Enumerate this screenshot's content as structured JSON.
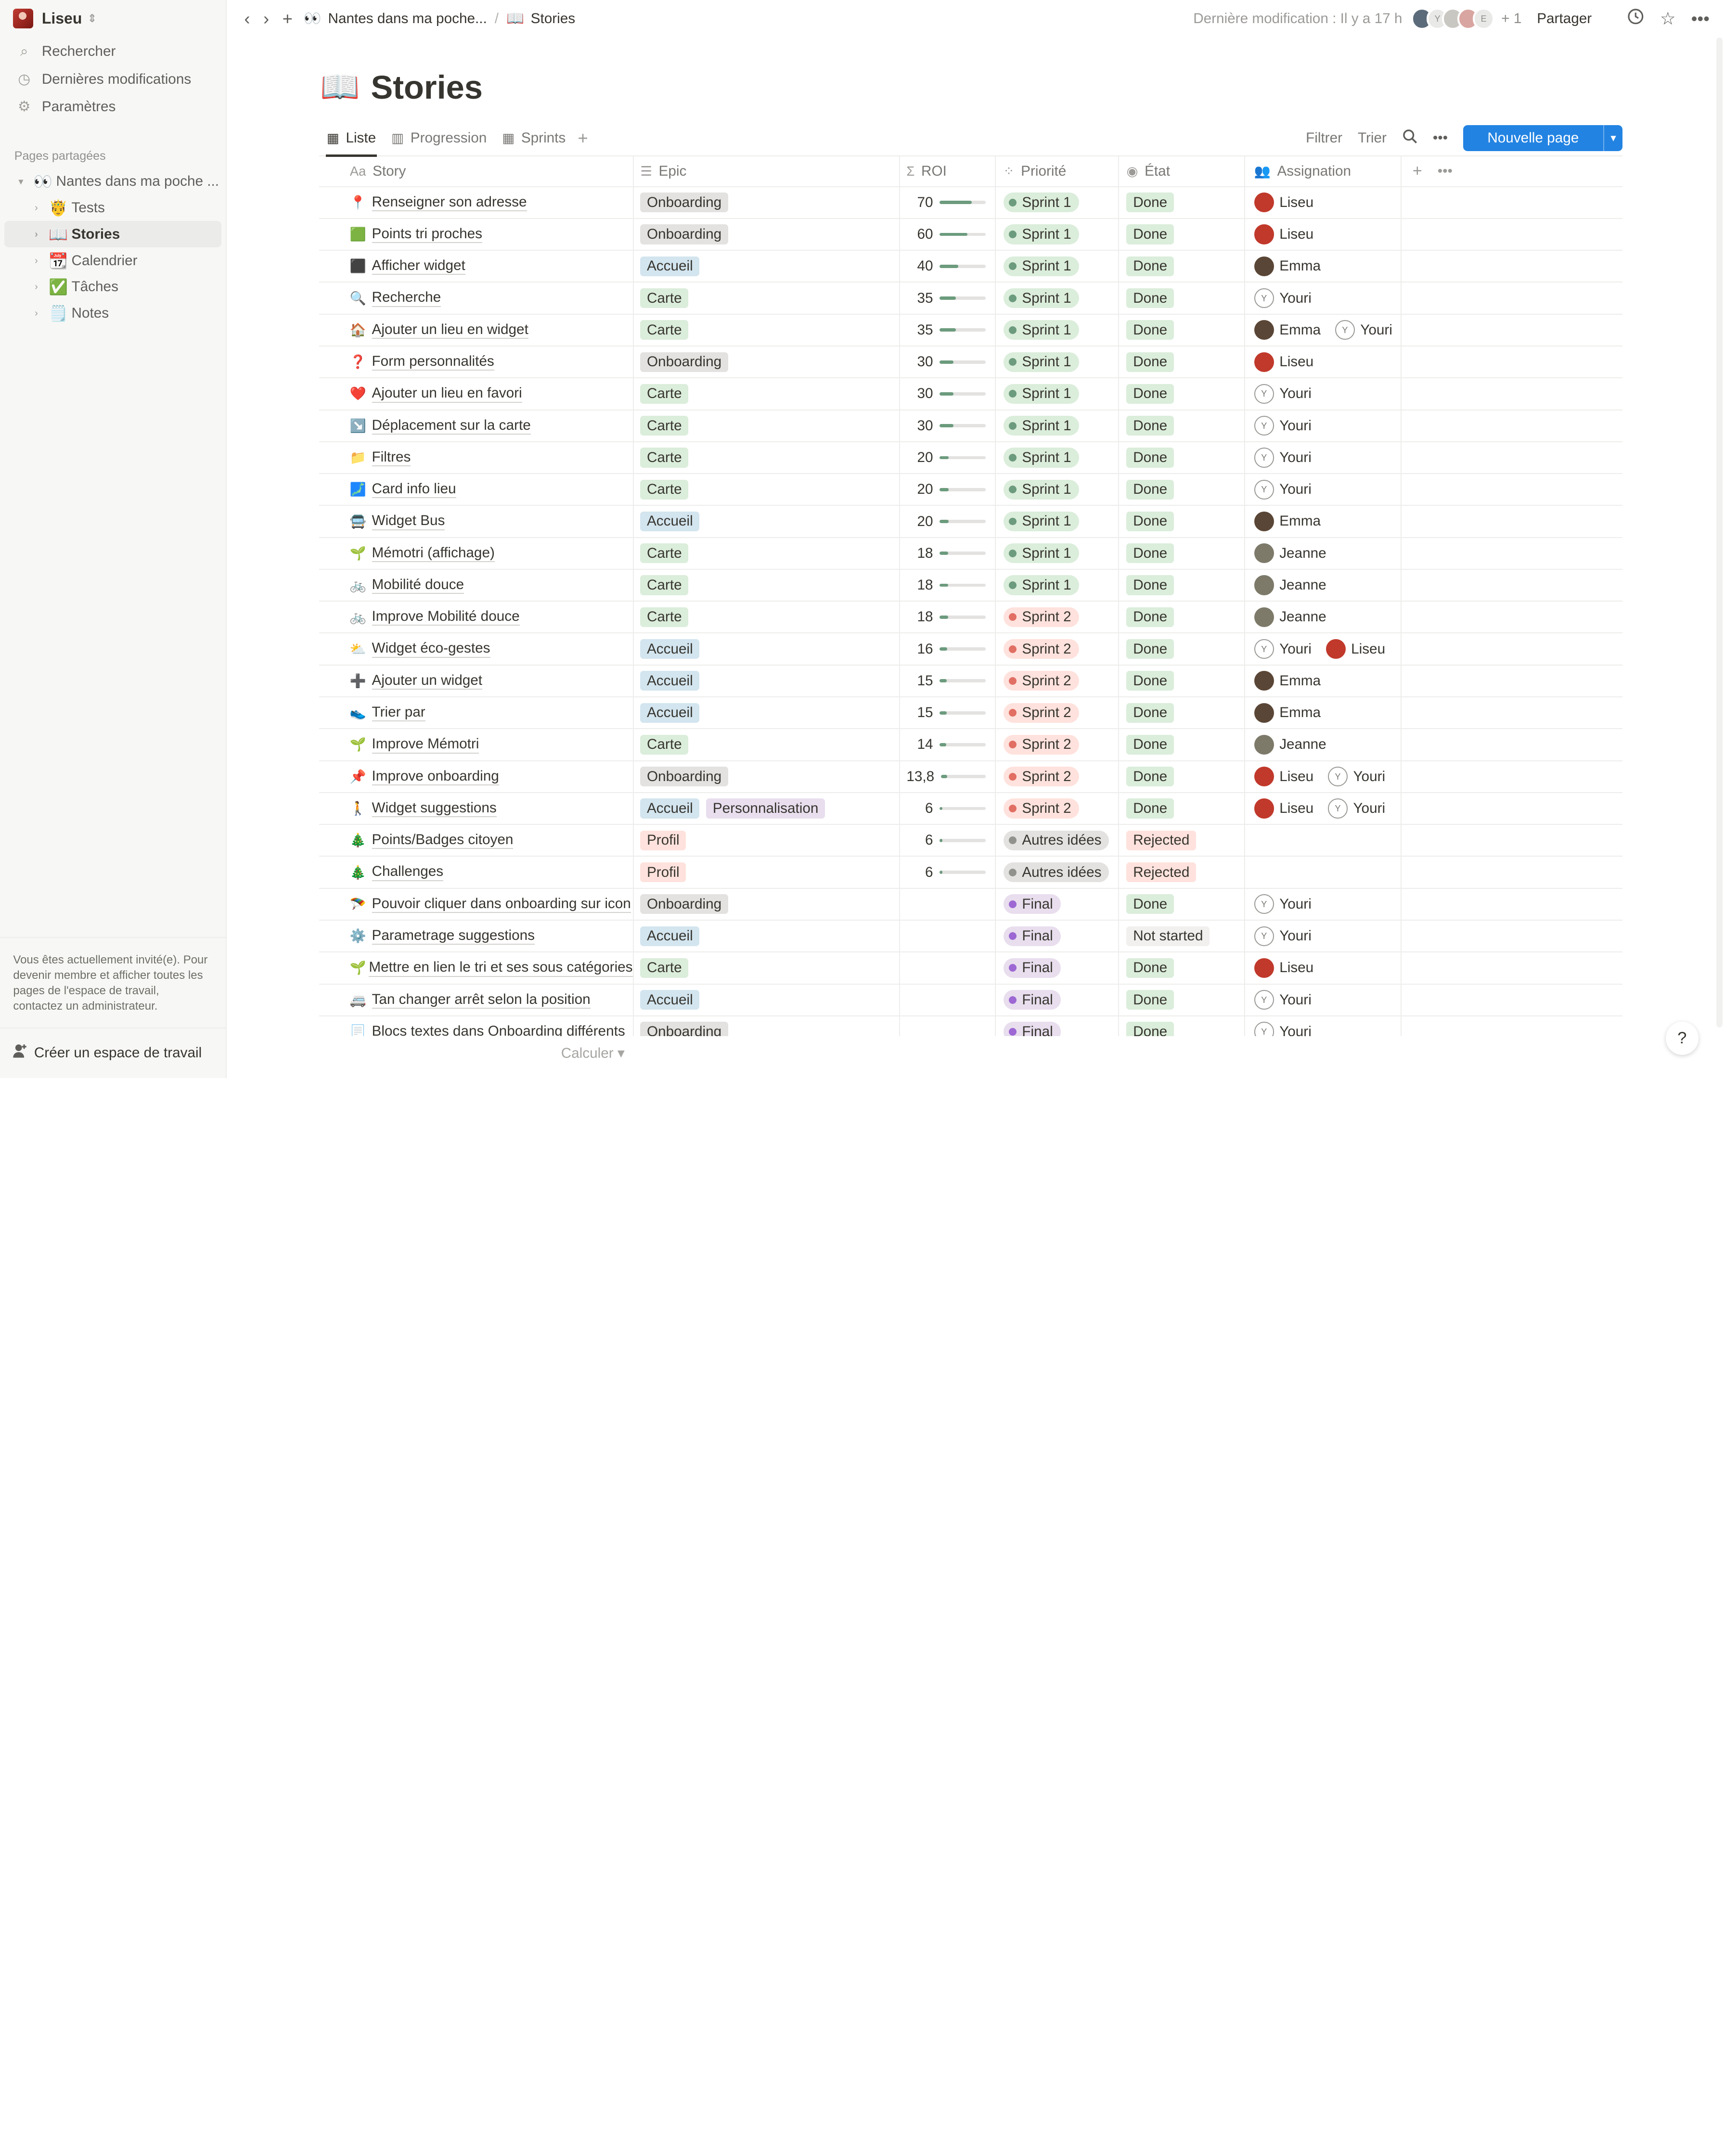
{
  "sidebar": {
    "workspace": "Liseu",
    "nav": [
      {
        "label": "Rechercher",
        "icon": "search-icon"
      },
      {
        "label": "Dernières modifications",
        "icon": "clock-icon"
      },
      {
        "label": "Paramètres",
        "icon": "gear-icon"
      }
    ],
    "section_label": "Pages partagées",
    "tree": [
      {
        "emoji": "👀",
        "label": "Nantes dans ma poche ...",
        "level": 0,
        "open": true
      },
      {
        "emoji": "🤴",
        "label": "Tests",
        "level": 1
      },
      {
        "emoji": "📖",
        "label": "Stories",
        "level": 1,
        "active": true
      },
      {
        "emoji": "📆",
        "label": "Calendrier",
        "level": 1
      },
      {
        "emoji": "✅",
        "label": "Tâches",
        "level": 1
      },
      {
        "emoji": "🗒️",
        "label": "Notes",
        "level": 1
      }
    ],
    "guest_note": "Vous êtes actuellement invité(e). Pour devenir membre et afficher toutes les pages de l'espace de travail, contactez un administrateur.",
    "create_workspace": "Créer un espace de travail"
  },
  "topbar": {
    "breadcrumb_parent_emoji": "👀",
    "breadcrumb_parent": "Nantes dans ma poche...",
    "breadcrumb_sep": "/",
    "breadcrumb_current_emoji": "📖",
    "breadcrumb_current": "Stories",
    "last_modified": "Dernière modification : Il y a 17 h",
    "extra_viewers": "+ 1",
    "share": "Partager"
  },
  "page": {
    "emoji": "📖",
    "title": "Stories"
  },
  "views": {
    "tabs": [
      {
        "label": "Liste",
        "icon": "table-icon",
        "active": true
      },
      {
        "label": "Progression",
        "icon": "board-icon"
      },
      {
        "label": "Sprints",
        "icon": "table-icon"
      }
    ],
    "filter": "Filtrer",
    "sort": "Trier",
    "new_page": "Nouvelle page"
  },
  "columns": {
    "story": "Story",
    "epic": "Epic",
    "roi": "ROI",
    "priority": "Priorité",
    "state": "État",
    "assignment": "Assignation"
  },
  "colors": {
    "epic": {
      "Onboarding": "#e3e2e0",
      "Accueil": "#d3e5ef",
      "Carte": "#dbeddb",
      "Profil": "#ffe2dd",
      "Personnalisation": "#e8deee"
    },
    "priority": {
      "Sprint 1": "#dbeddb",
      "Sprint 2": "#ffe2dd",
      "Autres idées": "#e3e2e0",
      "Final": "#e8deee"
    },
    "priority_dot": {
      "Sprint 1": "#6c9b7d",
      "Sprint 2": "#e16f64",
      "Autres idées": "#91918e",
      "Final": "#9d68d3"
    },
    "state": {
      "Done": "#dbeddb",
      "Rejected": "#ffe2dd",
      "Not started": "#f1f0ef"
    },
    "accent": "#2383e2"
  },
  "rows": [
    {
      "emoji": "📍",
      "story": "Renseigner son adresse",
      "epic": [
        "Onboarding"
      ],
      "roi": 70,
      "priority": "Sprint 1",
      "state": "Done",
      "assign": [
        "Liseu"
      ]
    },
    {
      "emoji": "🟩",
      "story": "Points tri proches",
      "epic": [
        "Onboarding"
      ],
      "roi": 60,
      "priority": "Sprint 1",
      "state": "Done",
      "assign": [
        "Liseu"
      ]
    },
    {
      "emoji": "⬛",
      "story": "Afficher widget",
      "epic": [
        "Accueil"
      ],
      "roi": 40,
      "priority": "Sprint 1",
      "state": "Done",
      "assign": [
        "Emma"
      ]
    },
    {
      "emoji": "🔍",
      "story": "Recherche",
      "epic": [
        "Carte"
      ],
      "roi": 35,
      "priority": "Sprint 1",
      "state": "Done",
      "assign": [
        "Youri"
      ]
    },
    {
      "emoji": "🏠",
      "story": "Ajouter un lieu en widget",
      "epic": [
        "Carte"
      ],
      "roi": 35,
      "priority": "Sprint 1",
      "state": "Done",
      "assign": [
        "Emma",
        "Youri"
      ]
    },
    {
      "emoji": "❓",
      "story": "Form personnalités",
      "epic": [
        "Onboarding"
      ],
      "roi": 30,
      "priority": "Sprint 1",
      "state": "Done",
      "assign": [
        "Liseu"
      ]
    },
    {
      "emoji": "❤️",
      "story": "Ajouter un lieu en favori",
      "epic": [
        "Carte"
      ],
      "roi": 30,
      "priority": "Sprint 1",
      "state": "Done",
      "assign": [
        "Youri"
      ]
    },
    {
      "emoji": "↘️",
      "story": "Déplacement sur la carte",
      "epic": [
        "Carte"
      ],
      "roi": 30,
      "priority": "Sprint 1",
      "state": "Done",
      "assign": [
        "Youri"
      ]
    },
    {
      "emoji": "📁",
      "story": "Filtres",
      "epic": [
        "Carte"
      ],
      "roi": 20,
      "priority": "Sprint 1",
      "state": "Done",
      "assign": [
        "Youri"
      ]
    },
    {
      "emoji": "🗾",
      "story": "Card info lieu",
      "epic": [
        "Carte"
      ],
      "roi": 20,
      "priority": "Sprint 1",
      "state": "Done",
      "assign": [
        "Youri"
      ]
    },
    {
      "emoji": "🚍",
      "story": "Widget Bus",
      "epic": [
        "Accueil"
      ],
      "roi": 20,
      "priority": "Sprint 1",
      "state": "Done",
      "assign": [
        "Emma"
      ]
    },
    {
      "emoji": "🌱",
      "story": "Mémotri (affichage)",
      "epic": [
        "Carte"
      ],
      "roi": 18,
      "priority": "Sprint 1",
      "state": "Done",
      "assign": [
        "Jeanne"
      ]
    },
    {
      "emoji": "🚲",
      "story": " Mobilité douce",
      "epic": [
        "Carte"
      ],
      "roi": 18,
      "priority": "Sprint 1",
      "state": "Done",
      "assign": [
        "Jeanne"
      ]
    },
    {
      "emoji": "🚲",
      "story": "Improve Mobilité douce",
      "epic": [
        "Carte"
      ],
      "roi": 18,
      "priority": "Sprint 2",
      "state": "Done",
      "assign": [
        "Jeanne"
      ]
    },
    {
      "emoji": "⛅",
      "story": "Widget éco-gestes",
      "epic": [
        "Accueil"
      ],
      "roi": 16,
      "priority": "Sprint 2",
      "state": "Done",
      "assign": [
        "Youri",
        "Liseu"
      ]
    },
    {
      "emoji": "➕",
      "story": "Ajouter un widget",
      "epic": [
        "Accueil"
      ],
      "roi": 15,
      "priority": "Sprint 2",
      "state": "Done",
      "assign": [
        "Emma"
      ]
    },
    {
      "emoji": "👟",
      "story": "Trier par",
      "epic": [
        "Accueil"
      ],
      "roi": 15,
      "priority": "Sprint 2",
      "state": "Done",
      "assign": [
        "Emma"
      ]
    },
    {
      "emoji": "🌱",
      "story": "Improve Mémotri",
      "epic": [
        "Carte"
      ],
      "roi": 14,
      "priority": "Sprint 2",
      "state": "Done",
      "assign": [
        "Jeanne"
      ]
    },
    {
      "emoji": "📌",
      "story": "Improve onboarding",
      "epic": [
        "Onboarding"
      ],
      "roi": "13,8",
      "priority": "Sprint 2",
      "state": "Done",
      "assign": [
        "Liseu",
        "Youri"
      ]
    },
    {
      "emoji": "🚶",
      "story": "Widget suggestions",
      "epic": [
        "Accueil",
        "Personnalisation"
      ],
      "roi": 6,
      "priority": "Sprint 2",
      "state": "Done",
      "assign": [
        "Liseu",
        "Youri"
      ]
    },
    {
      "emoji": "🎄",
      "story": "Points/Badges citoyen",
      "epic": [
        "Profil"
      ],
      "roi": 6,
      "priority": "Autres idées",
      "state": "Rejected",
      "assign": []
    },
    {
      "emoji": "🎄",
      "story": "Challenges",
      "epic": [
        "Profil"
      ],
      "roi": 6,
      "priority": "Autres idées",
      "state": "Rejected",
      "assign": []
    },
    {
      "emoji": "🪂",
      "story": "Pouvoir cliquer dans onboarding sur icon",
      "epic": [
        "Onboarding"
      ],
      "roi": null,
      "priority": "Final",
      "state": "Done",
      "assign": [
        "Youri"
      ]
    },
    {
      "emoji": "⚙️",
      "story": "Parametrage suggestions",
      "epic": [
        "Accueil"
      ],
      "roi": null,
      "priority": "Final",
      "state": "Not started",
      "assign": [
        "Youri"
      ]
    },
    {
      "emoji": "🌱",
      "story": "Mettre en lien le tri et ses sous catégories",
      "epic": [
        "Carte"
      ],
      "roi": null,
      "priority": "Final",
      "state": "Done",
      "assign": [
        "Liseu"
      ]
    },
    {
      "emoji": "🚐",
      "story": "Tan changer arrêt selon la position",
      "epic": [
        "Accueil"
      ],
      "roi": null,
      "priority": "Final",
      "state": "Done",
      "assign": [
        "Youri"
      ]
    },
    {
      "emoji": "📃",
      "story": "Blocs textes dans Onboarding différents",
      "epic": [
        "Onboarding"
      ],
      "roi": null,
      "priority": "Final",
      "state": "Done",
      "assign": [
        "Youri"
      ]
    }
  ],
  "roi_max": 100,
  "people": {
    "Liseu": {
      "avatar": "#c0392b"
    },
    "Emma": {
      "avatar": "#5a4636"
    },
    "Jeanne": {
      "avatar": "#7d7a6a"
    },
    "Youri": {
      "initial": "Y"
    }
  },
  "footer": {
    "calc": "Calculer",
    "help": "?"
  }
}
